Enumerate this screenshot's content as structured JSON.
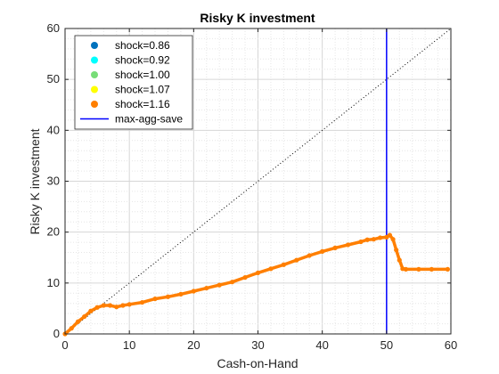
{
  "chart_data": {
    "type": "scatter",
    "title": "Risky K investment",
    "xlabel": "Cash-on-Hand",
    "ylabel": "Risky K investment",
    "xlim": [
      0,
      60
    ],
    "ylim": [
      0,
      60
    ],
    "xticks": [
      0,
      10,
      20,
      30,
      40,
      50,
      60
    ],
    "yticks": [
      0,
      10,
      20,
      30,
      40,
      50,
      60
    ],
    "grid": "major and minor, dotted",
    "legend_position": "top-left",
    "series": [
      {
        "name": "shock=0.86",
        "color": "#0072BD",
        "marker": "dot",
        "x": [],
        "y": []
      },
      {
        "name": "shock=0.92",
        "color": "#00FFFF",
        "marker": "dot",
        "x": [],
        "y": []
      },
      {
        "name": "shock=1.00",
        "color": "#77DD77",
        "marker": "dot",
        "x": [],
        "y": []
      },
      {
        "name": "shock=1.07",
        "color": "#FFFF00",
        "marker": "dot",
        "x": [],
        "y": []
      },
      {
        "name": "shock=1.16",
        "color": "#FF7F00",
        "marker": "dot",
        "x": [
          0,
          1,
          2,
          3,
          4,
          5,
          6,
          7,
          8,
          9,
          10,
          12,
          14,
          16,
          18,
          20,
          22,
          24,
          26,
          28,
          30,
          32,
          34,
          36,
          38,
          40,
          42,
          44,
          46,
          47,
          48,
          49,
          50,
          50.5,
          51,
          51.5,
          52,
          52.5,
          53,
          55,
          57,
          59.5
        ],
        "y": [
          0,
          1.1,
          2.4,
          3.4,
          4.5,
          5.2,
          5.6,
          5.6,
          5.3,
          5.6,
          5.8,
          6.2,
          6.9,
          7.3,
          7.8,
          8.4,
          9.0,
          9.6,
          10.2,
          11.1,
          12.0,
          12.8,
          13.6,
          14.5,
          15.4,
          16.2,
          16.9,
          17.5,
          18.1,
          18.5,
          18.6,
          18.9,
          19.0,
          19.4,
          18.6,
          16.5,
          14.5,
          12.8,
          12.7,
          12.7,
          12.7,
          12.7
        ]
      }
    ],
    "vline": {
      "name": "max-agg-save",
      "x": 50,
      "color": "#0000FF"
    },
    "diagonal": {
      "from": [
        0,
        0
      ],
      "to": [
        60,
        60
      ],
      "style": "dotted"
    }
  }
}
